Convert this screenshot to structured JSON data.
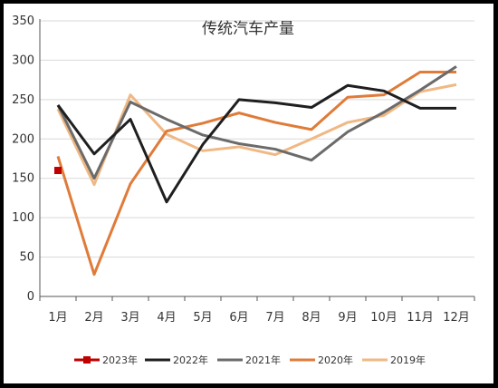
{
  "chart_data": {
    "type": "line",
    "title": "传统汽车产量",
    "xlabel": "",
    "ylabel": "",
    "categories": [
      "1月",
      "2月",
      "3月",
      "4月",
      "5月",
      "6月",
      "7月",
      "8月",
      "9月",
      "10月",
      "11月",
      "12月"
    ],
    "ylim": [
      0,
      350
    ],
    "yticks": [
      0,
      50,
      100,
      150,
      200,
      250,
      300,
      350
    ],
    "grid": true,
    "legend_position": "bottom",
    "series": [
      {
        "name": "2023年",
        "color": "#c00000",
        "marker": "square",
        "values": [
          160,
          null,
          null,
          null,
          null,
          null,
          null,
          null,
          null,
          null,
          null,
          null
        ]
      },
      {
        "name": "2022年",
        "color": "#1f1f1f",
        "values": [
          243,
          181,
          225,
          120,
          193,
          250,
          246,
          240,
          268,
          261,
          239,
          239
        ]
      },
      {
        "name": "2021年",
        "color": "#6b6b6b",
        "values": [
          243,
          150,
          247,
          225,
          205,
          194,
          187,
          173,
          209,
          234,
          262,
          292
        ]
      },
      {
        "name": "2020年",
        "color": "#e07b39",
        "values": [
          178,
          28,
          143,
          210,
          220,
          233,
          221,
          212,
          253,
          256,
          285,
          285
        ]
      },
      {
        "name": "2019年",
        "color": "#f0b884",
        "values": [
          238,
          142,
          256,
          206,
          185,
          190,
          180,
          200,
          221,
          230,
          260,
          269
        ]
      }
    ]
  }
}
